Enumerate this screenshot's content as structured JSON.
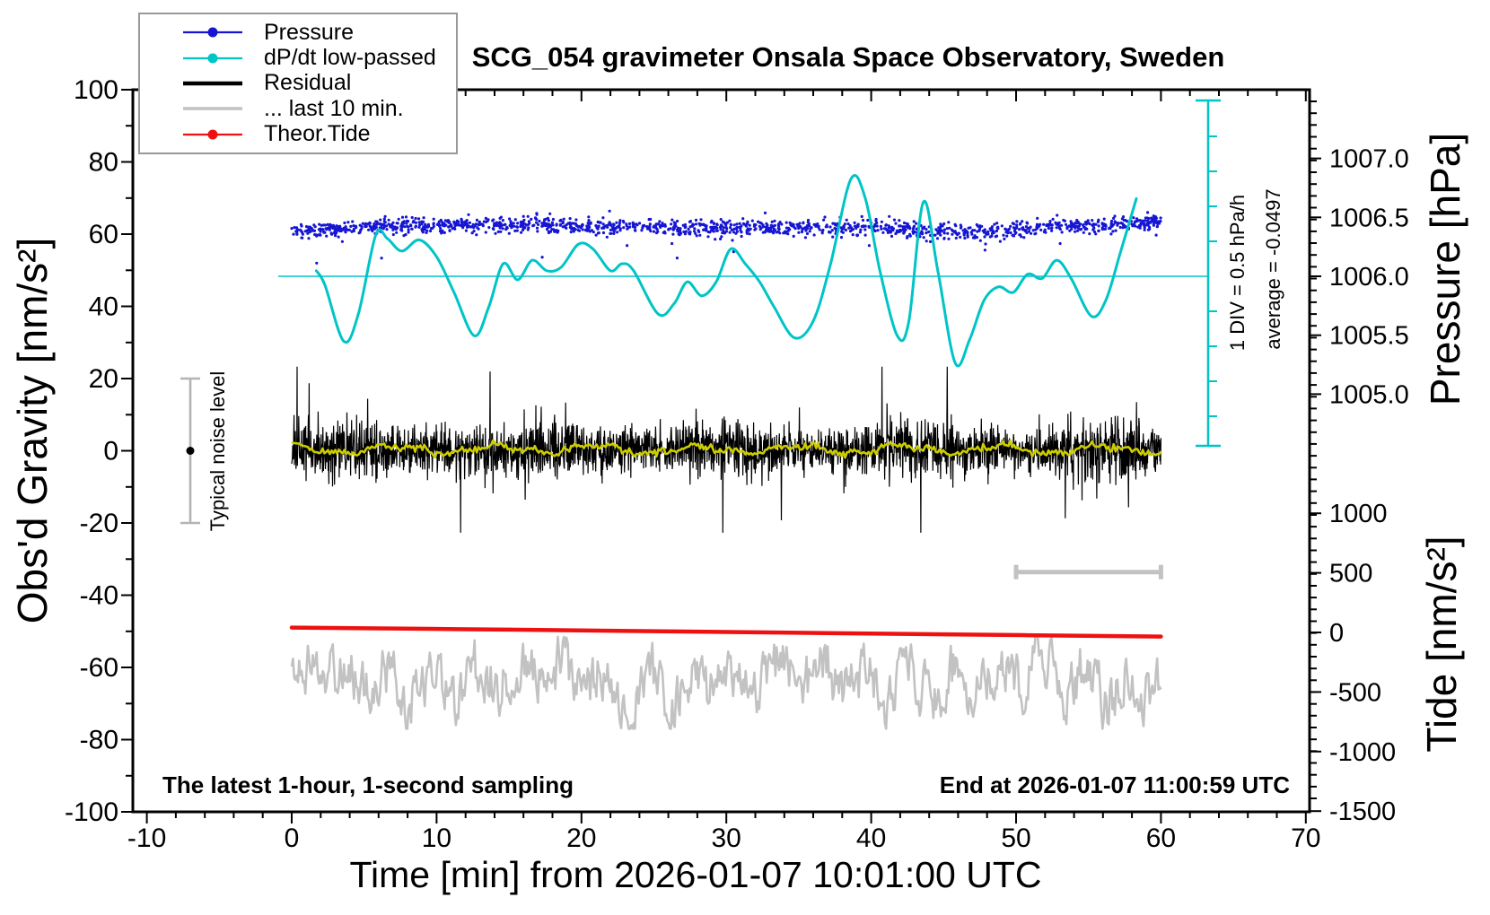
{
  "title": "SCG_054 gravimeter Onsala Space Observatory, Sweden",
  "legend": {
    "items": [
      {
        "label": "Pressure",
        "color": "#1616d2",
        "marker": "dot",
        "line": "thin"
      },
      {
        "label": "dP/dt low-passed",
        "color": "#00c4c6",
        "marker": "dot",
        "line": "thin"
      },
      {
        "label": "Residual",
        "color": "#000000",
        "marker": "none",
        "line": "thick"
      },
      {
        "label": "... last 10 min.",
        "color": "#c2c2c2",
        "marker": "none",
        "line": "medium"
      },
      {
        "label": "Theor.Tide",
        "color": "#ee1111",
        "marker": "dot",
        "line": "thin"
      }
    ]
  },
  "axes": {
    "time": {
      "label": "Time [min] from 2026-01-07 10:01:00 UTC",
      "min": -10,
      "max": 70,
      "major_step": 10,
      "minor_step": 2,
      "tick_labels": [
        "-10",
        "0",
        "10",
        "20",
        "30",
        "40",
        "50",
        "60",
        "70"
      ],
      "tick_values": [
        -10,
        0,
        10,
        20,
        30,
        40,
        50,
        60,
        70
      ]
    },
    "gravity": {
      "label": "Obs'd Gravity [nm/s²]",
      "min": -100,
      "max": 100,
      "major_step": 20,
      "minor_step": 10,
      "tick_labels": [
        "100",
        "80",
        "60",
        "40",
        "20",
        "0",
        "-20",
        "-40",
        "-60",
        "-80",
        "-100"
      ],
      "tick_values": [
        100,
        80,
        60,
        40,
        20,
        0,
        -20,
        -40,
        -60,
        -80,
        -100
      ]
    },
    "pressure": {
      "label": "Pressure [hPa]",
      "tick_labels": [
        "1007.0",
        "1006.5",
        "1006.0",
        "1005.5",
        "1005.0"
      ],
      "tick_values": [
        1007.0,
        1006.5,
        1006.0,
        1005.5,
        1005.0
      ]
    },
    "tide": {
      "label": "Tide [nm/s²]",
      "tick_labels": [
        "1000",
        "500",
        "0",
        "-500",
        "-1000",
        "-1500"
      ],
      "tick_values": [
        1000,
        500,
        0,
        -500,
        -1000,
        -1500
      ]
    },
    "dpdt": {
      "div_label": "1 DIV = 0.5 hPa/h",
      "average_label": "average = -0.0497",
      "div_hPa_per_h": 0.5,
      "average_hPa_per_h": -0.0497
    }
  },
  "annotations": {
    "noise_label": "Typical noise level",
    "sampling_note": "The latest 1-hour, 1-second sampling",
    "end_note": "End at 2026-01-07 11:00:59 UTC"
  },
  "chart_data": {
    "type": "line",
    "title": "SCG_054 gravimeter Onsala Space Observatory, Sweden",
    "xlabel": "Time [min] from 2026-01-07 10:01:00 UTC",
    "x_range_min": [
      -10,
      70
    ],
    "gravity_range": [
      -100,
      100
    ],
    "pressure_axis_range_hPa": [
      1004.45,
      1007.55
    ],
    "tide_axis_range": [
      -1500,
      1000
    ],
    "grid": false,
    "legend_position": "top-left",
    "series": [
      {
        "name": "Pressure",
        "axis": "pressure",
        "units": "hPa",
        "style": "dots",
        "color": "#1616d2",
        "t_range": [
          0,
          60
        ],
        "noise_sd": 0.033,
        "outlier_fraction": 0.012,
        "mean_curve": [
          [
            0,
            1006.39
          ],
          [
            8,
            1006.43
          ],
          [
            16,
            1006.44
          ],
          [
            24,
            1006.42
          ],
          [
            32,
            1006.41
          ],
          [
            40,
            1006.42
          ],
          [
            45,
            1006.37
          ],
          [
            48,
            1006.38
          ],
          [
            52,
            1006.42
          ],
          [
            56,
            1006.43
          ],
          [
            60,
            1006.46
          ]
        ]
      },
      {
        "name": "dP/dt low-passed",
        "axis": "dpdt",
        "units": "hPa/h",
        "style": "smooth-line",
        "color": "#00c4c6",
        "zero_level_at_pressure_hPa": 1006.0,
        "points": [
          [
            1.7,
            0.08
          ],
          [
            2.3,
            -0.13
          ],
          [
            3.6,
            -0.93
          ],
          [
            4.6,
            -0.54
          ],
          [
            5.8,
            0.59
          ],
          [
            6.6,
            0.54
          ],
          [
            7.6,
            0.36
          ],
          [
            8.8,
            0.52
          ],
          [
            10.0,
            0.28
          ],
          [
            11.2,
            -0.23
          ],
          [
            12.6,
            -0.85
          ],
          [
            13.6,
            -0.44
          ],
          [
            14.6,
            0.18
          ],
          [
            15.6,
            -0.05
          ],
          [
            16.6,
            0.23
          ],
          [
            17.6,
            0.08
          ],
          [
            18.6,
            0.13
          ],
          [
            19.8,
            0.46
          ],
          [
            20.8,
            0.39
          ],
          [
            22.0,
            0.08
          ],
          [
            22.8,
            0.18
          ],
          [
            23.6,
            0.08
          ],
          [
            25.3,
            -0.54
          ],
          [
            26.4,
            -0.39
          ],
          [
            27.3,
            -0.08
          ],
          [
            28.3,
            -0.28
          ],
          [
            29.3,
            -0.08
          ],
          [
            30.3,
            0.39
          ],
          [
            31.3,
            0.18
          ],
          [
            32.3,
            -0.08
          ],
          [
            33.3,
            -0.44
          ],
          [
            34.7,
            -0.88
          ],
          [
            36.0,
            -0.64
          ],
          [
            37.2,
            0.18
          ],
          [
            38.6,
            1.39
          ],
          [
            39.6,
            1.11
          ],
          [
            40.6,
            0.08
          ],
          [
            41.8,
            -0.85
          ],
          [
            42.6,
            -0.64
          ],
          [
            43.6,
            1.06
          ],
          [
            44.6,
            0.08
          ],
          [
            45.8,
            -1.24
          ],
          [
            46.8,
            -0.9
          ],
          [
            47.8,
            -0.34
          ],
          [
            48.8,
            -0.15
          ],
          [
            49.8,
            -0.23
          ],
          [
            50.8,
            0.03
          ],
          [
            51.8,
            -0.03
          ],
          [
            52.8,
            0.23
          ],
          [
            53.8,
            -0.03
          ],
          [
            55.2,
            -0.57
          ],
          [
            56.2,
            -0.34
          ],
          [
            57.2,
            0.34
          ],
          [
            58.3,
            1.11
          ]
        ]
      },
      {
        "name": "Residual",
        "axis": "gravity",
        "units": "nm/s²",
        "style": "noise-line",
        "color": "#000000",
        "center": 0.3,
        "noise_sd": 3.6,
        "spike_max": 23,
        "t_range": [
          0,
          60
        ]
      },
      {
        "name": "Residual low-passed",
        "axis": "gravity",
        "units": "nm/s²",
        "style": "smooth-noise-line",
        "color": "#cccc00",
        "center": 0.4,
        "amplitude": 2.0,
        "t_range": [
          0,
          60
        ]
      },
      {
        "name": "... last 10 min.",
        "axis": "gravity",
        "units": "nm/s²",
        "style": "noise-line",
        "color": "#c2c2c2",
        "center": -63.5,
        "noise_sd": 5,
        "t_range": [
          0,
          60
        ]
      },
      {
        "name": "Theor.Tide",
        "axis": "tide",
        "units": "nm/s²",
        "style": "line",
        "color": "#ee1111",
        "points": [
          [
            0,
            41
          ],
          [
            15,
            23
          ],
          [
            30,
            4
          ],
          [
            45,
            -16
          ],
          [
            60,
            -35
          ]
        ]
      }
    ],
    "markers": {
      "noise_error_bar": {
        "t": -7,
        "gravity_center": 0,
        "gravity_half_range": 20,
        "color": "#b4b4b4"
      },
      "last10_range_bar": {
        "t_start": 50,
        "t_end": 60,
        "gravity": -33.6,
        "color": "#c2c2c2"
      }
    }
  }
}
